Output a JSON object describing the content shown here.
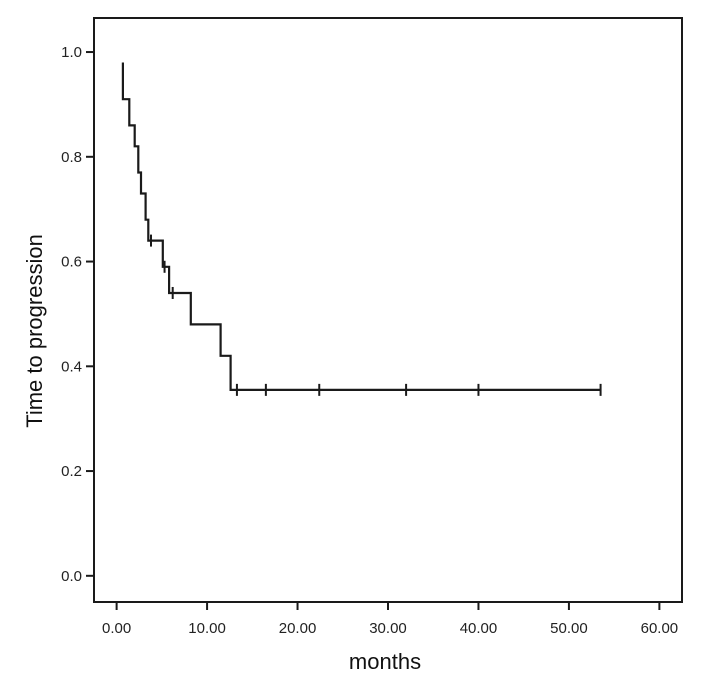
{
  "chart_data": {
    "type": "line",
    "subtype": "kaplan-meier-step",
    "title": "",
    "xlabel": "months",
    "ylabel": "Time to progression",
    "xlim": [
      -2.5,
      62.5
    ],
    "ylim": [
      -0.05,
      1.065
    ],
    "x_ticks": [
      0,
      10,
      20,
      30,
      40,
      50,
      60
    ],
    "x_tick_labels": [
      "0.00",
      "10.00",
      "20.00",
      "30.00",
      "40.00",
      "50.00",
      "60.00"
    ],
    "y_ticks": [
      0.0,
      0.2,
      0.4,
      0.6,
      0.8,
      1.0
    ],
    "y_tick_labels": [
      "0.0",
      "0.2",
      "0.4",
      "0.6",
      "0.8",
      "1.0"
    ],
    "grid": false,
    "legend": "none",
    "line_color": "#1a1a1a",
    "series": [
      {
        "steps": [
          [
            0.7,
            0.98
          ],
          [
            0.7,
            0.91
          ],
          [
            1.4,
            0.91
          ],
          [
            1.4,
            0.86
          ],
          [
            2.0,
            0.86
          ],
          [
            2.0,
            0.82
          ],
          [
            2.4,
            0.82
          ],
          [
            2.4,
            0.77
          ],
          [
            2.7,
            0.77
          ],
          [
            2.7,
            0.73
          ],
          [
            3.2,
            0.73
          ],
          [
            3.2,
            0.68
          ],
          [
            3.5,
            0.68
          ],
          [
            3.5,
            0.64
          ],
          [
            5.1,
            0.64
          ],
          [
            5.1,
            0.59
          ],
          [
            5.8,
            0.59
          ],
          [
            5.8,
            0.54
          ],
          [
            8.2,
            0.54
          ],
          [
            8.2,
            0.48
          ],
          [
            11.5,
            0.48
          ],
          [
            11.5,
            0.42
          ],
          [
            12.6,
            0.42
          ],
          [
            12.6,
            0.355
          ],
          [
            53.5,
            0.355
          ]
        ],
        "censored": [
          {
            "x": 3.8,
            "y": 0.64
          },
          {
            "x": 5.3,
            "y": 0.59
          },
          {
            "x": 6.2,
            "y": 0.54
          },
          {
            "x": 13.3,
            "y": 0.355
          },
          {
            "x": 16.5,
            "y": 0.355
          },
          {
            "x": 22.4,
            "y": 0.355
          },
          {
            "x": 32.0,
            "y": 0.355
          },
          {
            "x": 40.0,
            "y": 0.355
          },
          {
            "x": 53.5,
            "y": 0.355
          }
        ]
      }
    ]
  }
}
